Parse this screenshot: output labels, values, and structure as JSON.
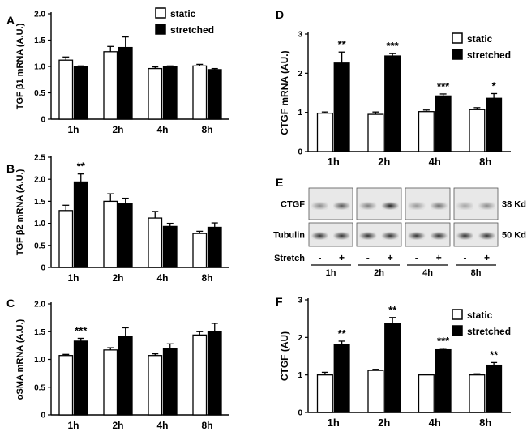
{
  "panel_letters": {
    "A": "A",
    "B": "B",
    "C": "C",
    "D": "D",
    "E": "E",
    "F": "F"
  },
  "legend": {
    "static": "static",
    "stretched": "stretched"
  },
  "colors": {
    "static": "#ffffff",
    "stretched": "#000000",
    "stroke": "#000000"
  },
  "chart_data": [
    {
      "panel": "A",
      "type": "bar",
      "categories": [
        "1h",
        "2h",
        "4h",
        "8h"
      ],
      "ylabel": "TGF β1 mRNA  (A.U.)",
      "ylim": [
        0,
        2.0
      ],
      "yticks": [
        "0",
        "0.5",
        "1.0",
        "1.5",
        "2.0"
      ],
      "ytick_values": [
        0,
        0.5,
        1.0,
        1.5,
        2.0
      ],
      "series": [
        {
          "name": "static",
          "values": [
            1.12,
            1.28,
            0.96,
            1.01
          ],
          "errors": [
            0.06,
            0.1,
            0.03,
            0.03
          ]
        },
        {
          "name": "stretched",
          "values": [
            0.99,
            1.36,
            0.99,
            0.94
          ],
          "errors": [
            0.02,
            0.2,
            0.02,
            0.02
          ]
        }
      ],
      "annotations": []
    },
    {
      "panel": "B",
      "type": "bar",
      "categories": [
        "1h",
        "2h",
        "4h",
        "8h"
      ],
      "ylabel": "TGF β2 mRNA  (A.U.)",
      "ylim": [
        0,
        2.5
      ],
      "yticks": [
        "0",
        "0.5",
        "1.0",
        "1.5",
        "2.0",
        "2.5"
      ],
      "ytick_values": [
        0,
        0.5,
        1.0,
        1.5,
        2.0,
        2.5
      ],
      "series": [
        {
          "name": "static",
          "values": [
            1.29,
            1.5,
            1.12,
            0.77
          ],
          "errors": [
            0.12,
            0.17,
            0.15,
            0.05
          ]
        },
        {
          "name": "stretched",
          "values": [
            1.94,
            1.44,
            0.93,
            0.91
          ],
          "errors": [
            0.18,
            0.13,
            0.07,
            0.1
          ]
        }
      ],
      "annotations": [
        {
          "category": "1h",
          "series": "stretched",
          "text": "**"
        }
      ]
    },
    {
      "panel": "C",
      "type": "bar",
      "categories": [
        "1h",
        "2h",
        "4h",
        "8h"
      ],
      "ylabel": "αSMA  mRNA  (A.U.)",
      "ylim": [
        0,
        2.0
      ],
      "yticks": [
        "0",
        "0.5",
        "1.0",
        "1.5",
        "2.0"
      ],
      "ytick_values": [
        0,
        0.5,
        1.0,
        1.5,
        2.0
      ],
      "series": [
        {
          "name": "static",
          "values": [
            1.07,
            1.17,
            1.07,
            1.44
          ],
          "errors": [
            0.02,
            0.04,
            0.03,
            0.06
          ]
        },
        {
          "name": "stretched",
          "values": [
            1.33,
            1.42,
            1.2,
            1.5
          ],
          "errors": [
            0.05,
            0.15,
            0.08,
            0.15
          ]
        }
      ],
      "annotations": [
        {
          "category": "1h",
          "series": "stretched",
          "text": "***"
        }
      ]
    },
    {
      "panel": "D",
      "type": "bar",
      "categories": [
        "1h",
        "2h",
        "4h",
        "8h"
      ],
      "ylabel": "CTGF mRNA (AU.)",
      "ylim": [
        0,
        3
      ],
      "yticks": [
        "0",
        "1",
        "2",
        "3"
      ],
      "ytick_values": [
        0,
        1,
        2,
        3
      ],
      "series": [
        {
          "name": "static",
          "values": [
            0.98,
            0.95,
            1.02,
            1.07
          ],
          "errors": [
            0.03,
            0.06,
            0.04,
            0.05
          ]
        },
        {
          "name": "stretched",
          "values": [
            2.26,
            2.44,
            1.42,
            1.36
          ],
          "errors": [
            0.28,
            0.06,
            0.05,
            0.12
          ]
        }
      ],
      "annotations": [
        {
          "category": "1h",
          "series": "stretched",
          "text": "**"
        },
        {
          "category": "2h",
          "series": "stretched",
          "text": "***"
        },
        {
          "category": "4h",
          "series": "stretched",
          "text": "***"
        },
        {
          "category": "8h",
          "series": "stretched",
          "text": "*"
        }
      ]
    },
    {
      "panel": "F",
      "type": "bar",
      "categories": [
        "1h",
        "2h",
        "4h",
        "8h"
      ],
      "ylabel": "CTGF (AU)",
      "ylim": [
        0,
        3
      ],
      "yticks": [
        "0",
        "1",
        "2",
        "3"
      ],
      "ytick_values": [
        0,
        1,
        2,
        3
      ],
      "series": [
        {
          "name": "static",
          "values": [
            1.0,
            1.12,
            1.0,
            1.0
          ],
          "errors": [
            0.07,
            0.03,
            0.02,
            0.03
          ]
        },
        {
          "name": "stretched",
          "values": [
            1.8,
            2.36,
            1.67,
            1.26
          ],
          "errors": [
            0.1,
            0.17,
            0.04,
            0.07
          ]
        }
      ],
      "annotations": [
        {
          "category": "1h",
          "series": "stretched",
          "text": "**"
        },
        {
          "category": "2h",
          "series": "stretched",
          "text": "**"
        },
        {
          "category": "4h",
          "series": "stretched",
          "text": "***"
        },
        {
          "category": "8h",
          "series": "stretched",
          "text": "**"
        }
      ]
    }
  ],
  "blot": {
    "rows": [
      {
        "label": "CTGF",
        "size": "38 Kd"
      },
      {
        "label": "Tubulin",
        "size": "50 Kd"
      }
    ],
    "stretch_label": "Stretch",
    "lane_signs": [
      "-",
      "+",
      "-",
      "+",
      "-",
      "+",
      "-",
      "+"
    ],
    "groups": [
      "1h",
      "2h",
      "4h",
      "8h"
    ],
    "intensities": {
      "CTGF": [
        0.45,
        0.65,
        0.5,
        0.85,
        0.4,
        0.55,
        0.35,
        0.45
      ],
      "Tubulin": [
        0.8,
        0.8,
        0.8,
        0.8,
        0.8,
        0.8,
        0.8,
        0.8
      ]
    }
  }
}
